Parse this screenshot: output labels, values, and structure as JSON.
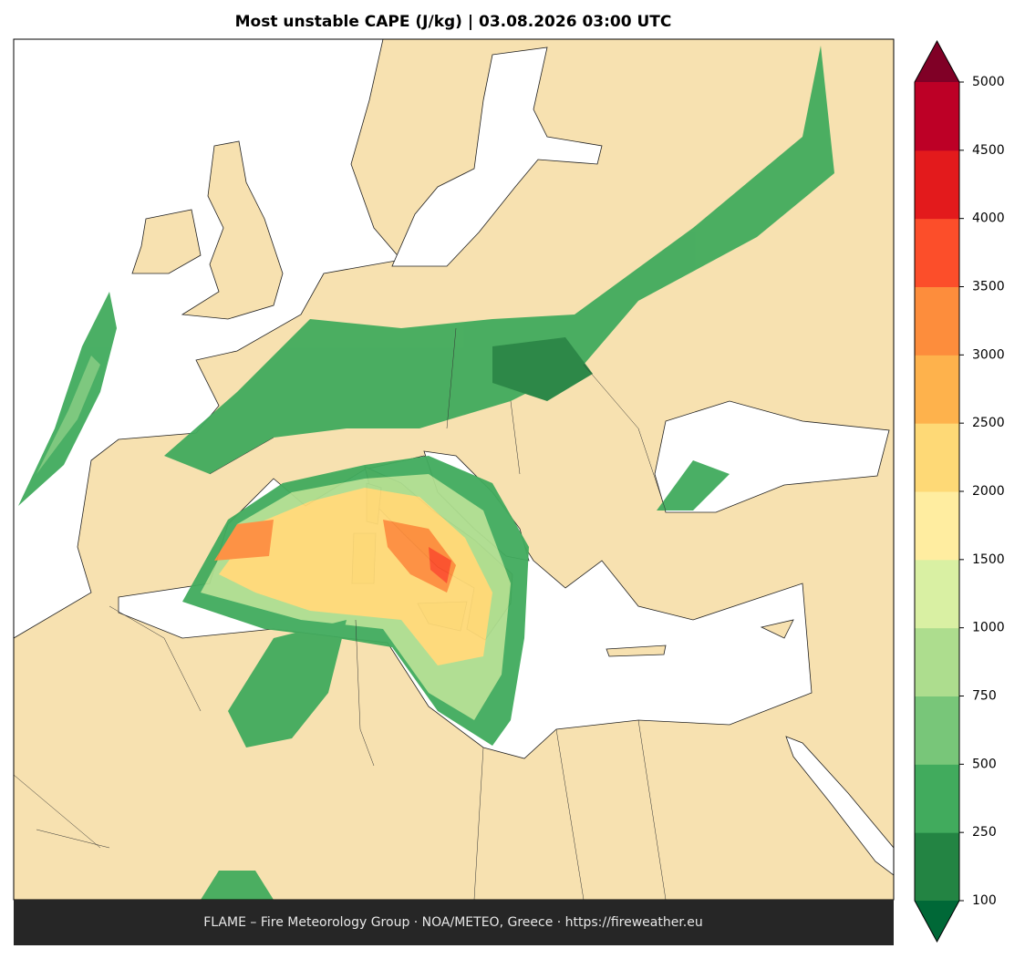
{
  "title": "Most unstable CAPE (J/kg)  |  03.08.2026 03:00 UTC",
  "footer": "FLAME – Fire Meteorology Group · NOA/METEO, Greece · https://fireweather.eu",
  "colorbar": {
    "ticks": [
      100,
      250,
      500,
      750,
      1000,
      1500,
      2000,
      2500,
      3000,
      3500,
      4000,
      4500,
      5000
    ],
    "colors": [
      "#238443",
      "#41ab5d",
      "#78c679",
      "#addd8e",
      "#d9f0a3",
      "#ffeda0",
      "#fed976",
      "#feb24c",
      "#fd8d3c",
      "#fc4e2a",
      "#e31a1c",
      "#bd0026"
    ],
    "under_color": "#006837",
    "over_color": "#800026"
  }
}
